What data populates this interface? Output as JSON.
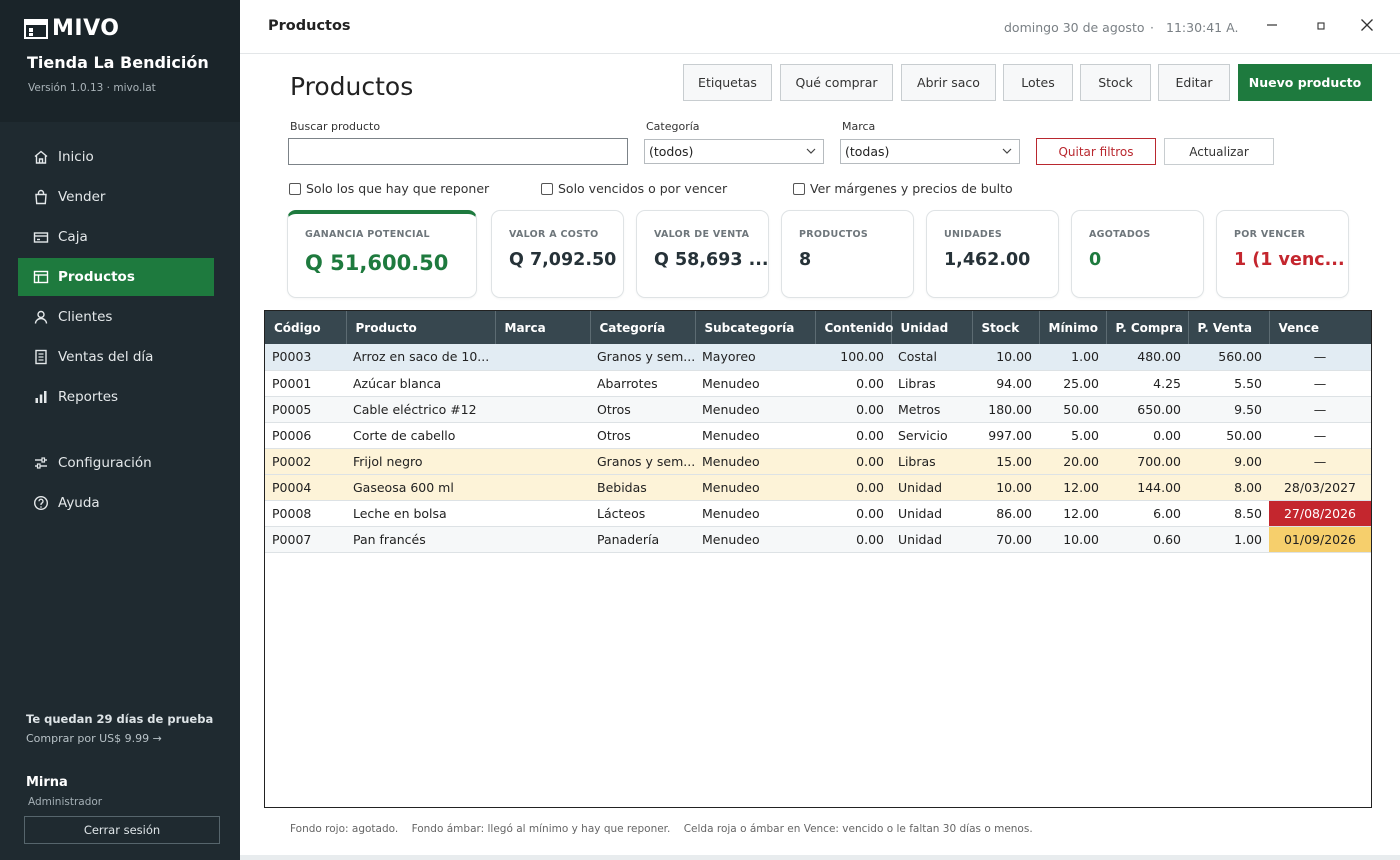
{
  "sidebar": {
    "logo_text": "MIVO",
    "store_name": "Tienda La Bendición",
    "version": "Versión 1.0.13 · mivo.lat",
    "items": [
      {
        "label": "Inicio",
        "icon": "home-icon"
      },
      {
        "label": "Vender",
        "icon": "shopping-bag-icon"
      },
      {
        "label": "Caja",
        "icon": "cash-register-icon"
      },
      {
        "label": "Productos",
        "icon": "box-icon",
        "active": true
      },
      {
        "label": "Clientes",
        "icon": "user-icon"
      },
      {
        "label": "Ventas del día",
        "icon": "receipt-icon"
      },
      {
        "label": "Reportes",
        "icon": "bar-chart-icon"
      },
      {
        "label": "Configuración",
        "icon": "sliders-icon"
      },
      {
        "label": "Ayuda",
        "icon": "help-icon"
      }
    ],
    "trial_title": "Te quedan 29 días de prueba",
    "trial_link": "Comprar por US$ 9.99 →",
    "user_name": "Mirna",
    "user_role": "Administrador",
    "logout": "Cerrar sesión"
  },
  "titlebar": {
    "title": "Productos",
    "date": "domingo 30 de agosto",
    "separator": "·",
    "time": "11:30:41 A."
  },
  "page": {
    "heading": "Productos",
    "buttons": {
      "etiquetas": "Etiquetas",
      "que_comprar": "Qué comprar",
      "abrir_saco": "Abrir saco",
      "lotes": "Lotes",
      "stock": "Stock",
      "editar": "Editar",
      "nuevo": "Nuevo producto"
    }
  },
  "filters": {
    "search_label": "Buscar producto",
    "search_value": "",
    "categoria_label": "Categoría",
    "categoria_value": "(todos)",
    "marca_label": "Marca",
    "marca_value": "(todas)",
    "quitar": "Quitar filtros",
    "actualizar": "Actualizar",
    "chk_reponer": "Solo los que hay que reponer",
    "chk_vencidos": "Solo vencidos o por vencer",
    "chk_margenes": "Ver márgenes y precios de bulto"
  },
  "cards": {
    "ganancia_label": "GANANCIA POTENCIAL",
    "ganancia_value": "Q 51,600.50",
    "costo_label": "VALOR A COSTO",
    "costo_value": "Q 7,092.50",
    "venta_label": "VALOR DE VENTA",
    "venta_value": "Q 58,693 ...",
    "productos_label": "PRODUCTOS",
    "productos_value": "8",
    "unidades_label": "UNIDADES",
    "unidades_value": "1,462.00",
    "agotados_label": "AGOTADOS",
    "agotados_value": "0",
    "vencer_label": "POR VENCER",
    "vencer_value": "1 (1 venc..."
  },
  "colors": {
    "accent_green": "#1e7a3e",
    "sidebar_bg": "#1f2a30",
    "header_bg": "#37474f",
    "danger_red": "#c4262e",
    "amber": "#f6cf6c",
    "amber_row": "#fdf3d8"
  },
  "table": {
    "headers": {
      "codigo": "Código",
      "producto": "Producto",
      "marca": "Marca",
      "categoria": "Categoría",
      "subcategoria": "Subcategoría",
      "contenido": "Contenido",
      "unidad": "Unidad",
      "stock": "Stock",
      "minimo": "Mínimo",
      "p_compra": "P. Compra",
      "p_venta": "P. Venta",
      "vence": "Vence"
    },
    "rows": [
      {
        "codigo": "P0003",
        "producto": "Arroz en saco de 10...",
        "marca": "",
        "categoria": "Granos y sem...",
        "subcategoria": "Mayoreo",
        "contenido": "100.00",
        "unidad": "Costal",
        "stock": "10.00",
        "minimo": "1.00",
        "p_compra": "480.00",
        "p_venta": "560.00",
        "vence": "—"
      },
      {
        "codigo": "P0001",
        "producto": "Azúcar blanca",
        "marca": "",
        "categoria": "Abarrotes",
        "subcategoria": "Menudeo",
        "contenido": "0.00",
        "unidad": "Libras",
        "stock": "94.00",
        "minimo": "25.00",
        "p_compra": "4.25",
        "p_venta": "5.50",
        "vence": "—"
      },
      {
        "codigo": "P0005",
        "producto": "Cable eléctrico #12",
        "marca": "",
        "categoria": "Otros",
        "subcategoria": "Menudeo",
        "contenido": "0.00",
        "unidad": "Metros",
        "stock": "180.00",
        "minimo": "50.00",
        "p_compra": "650.00",
        "p_venta": "9.50",
        "vence": "—"
      },
      {
        "codigo": "P0006",
        "producto": "Corte de cabello",
        "marca": "",
        "categoria": "Otros",
        "subcategoria": "Menudeo",
        "contenido": "0.00",
        "unidad": "Servicio",
        "stock": "997.00",
        "minimo": "5.00",
        "p_compra": "0.00",
        "p_venta": "50.00",
        "vence": "—"
      },
      {
        "codigo": "P0002",
        "producto": "Frijol negro",
        "marca": "",
        "categoria": "Granos y sem...",
        "subcategoria": "Menudeo",
        "contenido": "0.00",
        "unidad": "Libras",
        "stock": "15.00",
        "minimo": "20.00",
        "p_compra": "700.00",
        "p_venta": "9.00",
        "vence": "—"
      },
      {
        "codigo": "P0004",
        "producto": "Gaseosa 600 ml",
        "marca": "",
        "categoria": "Bebidas",
        "subcategoria": "Menudeo",
        "contenido": "0.00",
        "unidad": "Unidad",
        "stock": "10.00",
        "minimo": "12.00",
        "p_compra": "144.00",
        "p_venta": "8.00",
        "vence": "28/03/2027"
      },
      {
        "codigo": "P0008",
        "producto": "Leche en bolsa",
        "marca": "",
        "categoria": "Lácteos",
        "subcategoria": "Menudeo",
        "contenido": "0.00",
        "unidad": "Unidad",
        "stock": "86.00",
        "minimo": "12.00",
        "p_compra": "6.00",
        "p_venta": "8.50",
        "vence": "27/08/2026"
      },
      {
        "codigo": "P0007",
        "producto": "Pan francés",
        "marca": "",
        "categoria": "Panadería",
        "subcategoria": "Menudeo",
        "contenido": "0.00",
        "unidad": "Unidad",
        "stock": "70.00",
        "minimo": "10.00",
        "p_compra": "0.60",
        "p_venta": "1.00",
        "vence": "01/09/2026"
      }
    ]
  },
  "footnote": "Fondo rojo: agotado.    Fondo ámbar: llegó al mínimo y hay que reponer.    Celda roja o ámbar en Vence: vencido o le faltan 30 días o menos."
}
